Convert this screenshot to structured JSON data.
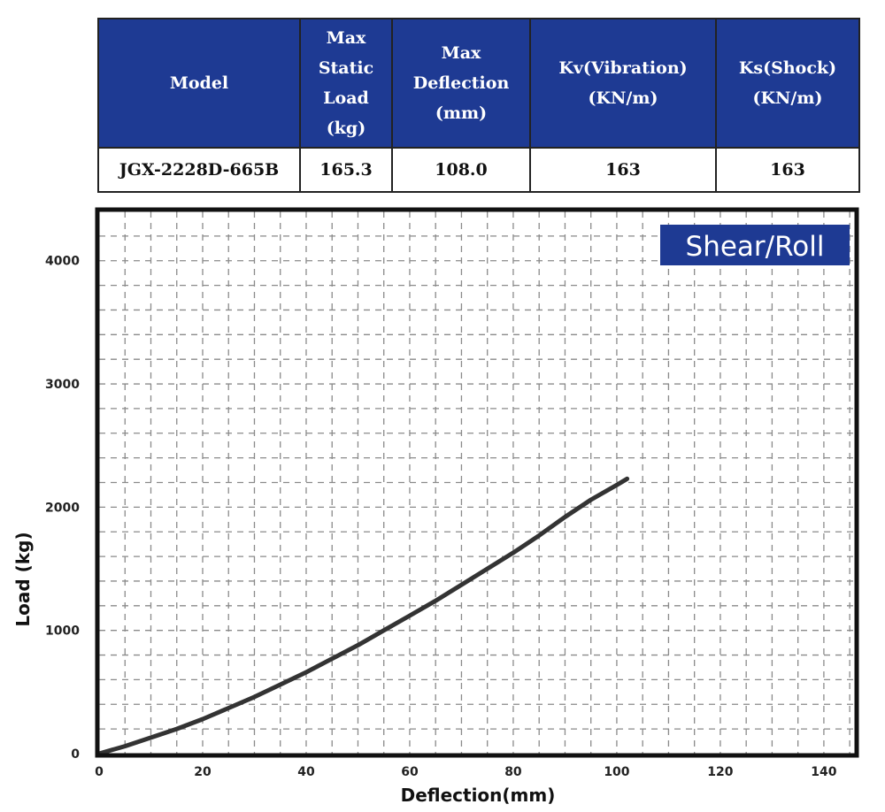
{
  "spec_table": {
    "headers": [
      "Model",
      "Max\nStatic\nLoad\n(kg)",
      "Max\nDeflection\n(mm)",
      "Kv(Vibration)\n(KN/m)",
      "Ks(Shock)\n(KN/m)"
    ],
    "row": [
      "JGX-2228D-665B",
      "165.3",
      "108.0",
      "163",
      "163"
    ]
  },
  "chart_data": {
    "type": "line",
    "title": "Shear/Roll",
    "xlabel": "Deflection(mm)",
    "ylabel": "Load (kg)",
    "xlim": [
      0,
      146
    ],
    "ylim": [
      0,
      4400
    ],
    "x_ticks": [
      0,
      20,
      40,
      60,
      80,
      100,
      120,
      140
    ],
    "y_ticks": [
      0,
      1000,
      2000,
      3000,
      4000
    ],
    "grid": true,
    "grid_style": "dashed",
    "legend": "none",
    "series": [
      {
        "x": [
          0,
          5,
          10,
          15,
          20,
          25,
          30,
          35,
          40,
          45,
          50,
          55,
          60,
          65,
          70,
          75,
          80,
          85,
          90,
          95,
          100,
          102
        ],
        "y": [
          0,
          60,
          130,
          200,
          280,
          370,
          460,
          560,
          660,
          770,
          880,
          1000,
          1120,
          1240,
          1370,
          1500,
          1630,
          1770,
          1920,
          2060,
          2180,
          2230
        ]
      }
    ],
    "colors": {
      "line": "#333333",
      "badge": "#1e3a93",
      "frame": "#111111",
      "grid": "#8a8a8a"
    }
  }
}
